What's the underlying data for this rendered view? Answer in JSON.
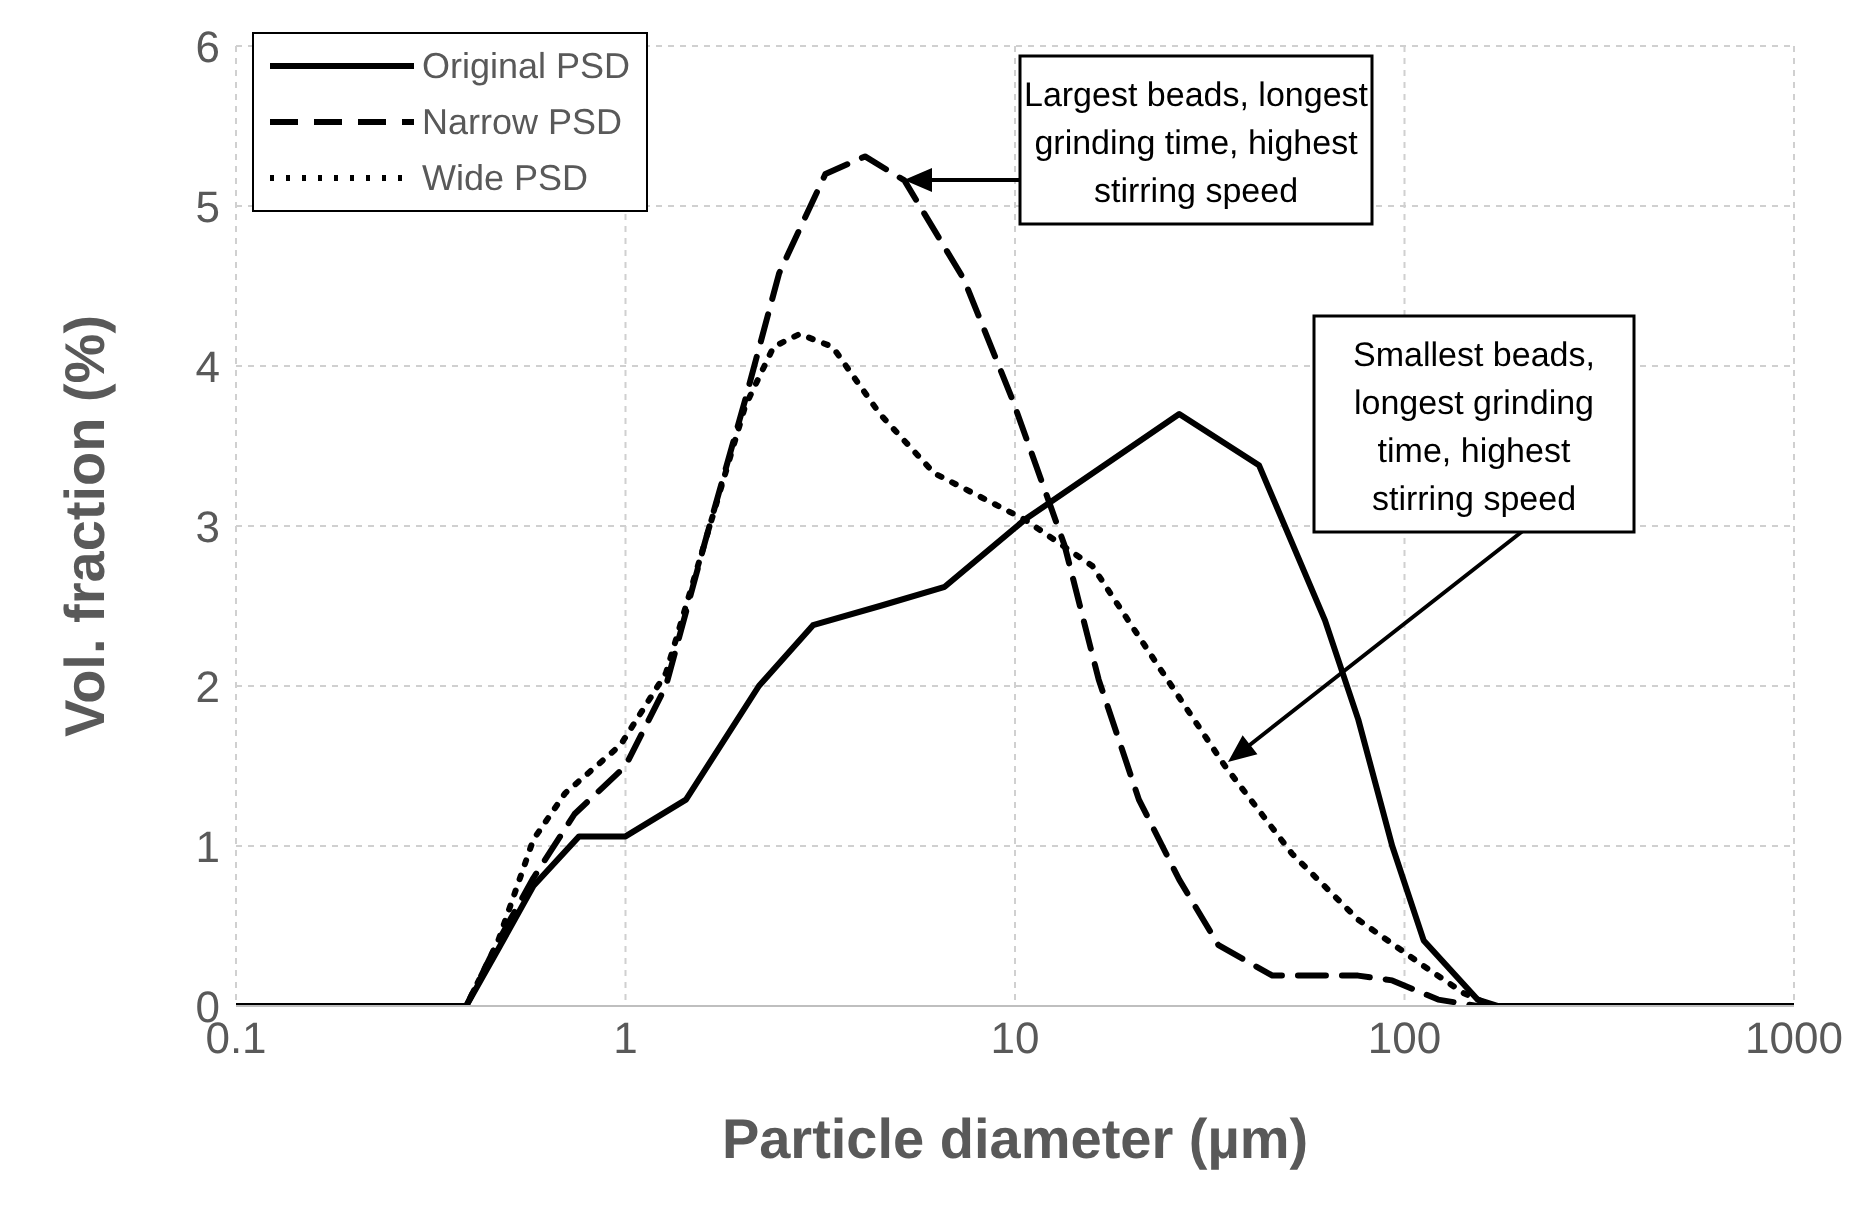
{
  "chart_data": {
    "type": "line",
    "xlabel": "Particle diameter (µm)",
    "ylabel": "Vol. fraction (%)",
    "log": "x",
    "xlim": [
      0.1,
      1000
    ],
    "xticks": [
      0.1,
      1,
      10,
      100,
      1000
    ],
    "ylim": [
      0,
      6
    ],
    "yticks": [
      0,
      1,
      2,
      3,
      4,
      5,
      6
    ],
    "grid": true,
    "legend": "top left",
    "marker": "none",
    "series": [
      {
        "name": "Original PSD",
        "color": "#000000",
        "line_style": "solid",
        "x": [
          0.1,
          0.2,
          0.39,
          0.475,
          0.58,
          0.76,
          1,
          1.43,
          2.2,
          3.03,
          4.5,
          6.6,
          10.6,
          26.4,
          42.3,
          62.5,
          76.1,
          93,
          112,
          154,
          174,
          300,
          1000
        ],
        "values": [
          0,
          0,
          0,
          0.37,
          0.75,
          1.06,
          1.06,
          1.29,
          2.0,
          2.38,
          2.5,
          2.62,
          3.04,
          3.7,
          3.38,
          2.41,
          1.79,
          1.0,
          0.41,
          0.04,
          0,
          0,
          0
        ]
      },
      {
        "name": "Narrow PSD",
        "color": "#000000",
        "line_style": "dashed",
        "x": [
          0.1,
          0.2,
          0.39,
          0.47,
          0.58,
          0.74,
          1,
          1.27,
          1.6,
          2.03,
          2.48,
          3.26,
          4.12,
          5.2,
          7.4,
          9.85,
          13.4,
          16.4,
          20.8,
          26.4,
          33.3,
          45.8,
          76,
          93,
          122,
          154,
          300,
          1000
        ],
        "values": [
          0,
          0,
          0,
          0.4,
          0.8,
          1.2,
          1.5,
          2.0,
          2.9,
          3.79,
          4.58,
          5.2,
          5.31,
          5.16,
          4.54,
          3.79,
          2.88,
          2.04,
          1.29,
          0.79,
          0.38,
          0.19,
          0.19,
          0.16,
          0.04,
          0,
          0,
          0
        ]
      },
      {
        "name": "Wide PSD",
        "color": "#000000",
        "line_style": "dotted",
        "x": [
          0.1,
          0.2,
          0.39,
          0.47,
          0.58,
          0.7,
          0.97,
          1.27,
          1.6,
          2.03,
          2.4,
          2.8,
          3.4,
          4.5,
          6.2,
          10.6,
          15.8,
          23.4,
          34.6,
          51.5,
          76,
          112,
          142,
          168,
          300,
          1000
        ],
        "values": [
          0,
          0,
          0,
          0.4,
          1.04,
          1.33,
          1.63,
          2.08,
          2.9,
          3.75,
          4.12,
          4.2,
          4.12,
          3.7,
          3.33,
          3.04,
          2.75,
          2.12,
          1.5,
          0.95,
          0.54,
          0.25,
          0.08,
          0,
          0,
          0
        ]
      }
    ],
    "annotations": [
      "Largest beads, longest grinding time, highest stirring speed",
      "Smallest beads, longest grinding time, highest stirring speed"
    ]
  }
}
